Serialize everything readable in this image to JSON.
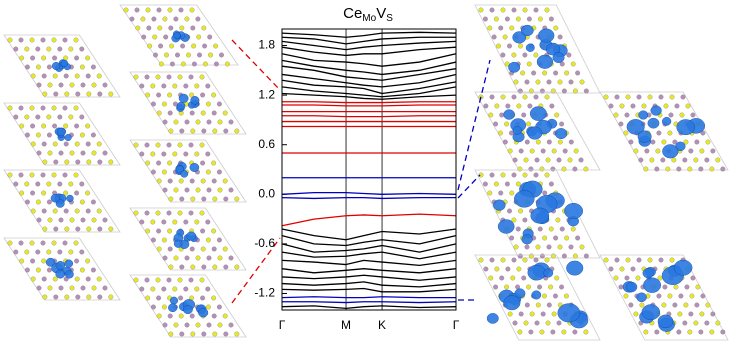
{
  "chart_data": {
    "type": "line",
    "title": {
      "main": "Ce",
      "sub1": "Mo",
      "mid": "V",
      "sub2": "S"
    },
    "x": [
      0,
      0.184,
      0.368,
      0.47,
      0.575,
      0.79,
      1
    ],
    "xlim": [
      0,
      1
    ],
    "xticks": [
      {
        "value": 0,
        "label": "Γ"
      },
      {
        "value": 0.368,
        "label": "M"
      },
      {
        "value": 0.575,
        "label": "K"
      },
      {
        "value": 1,
        "label": "Γ"
      }
    ],
    "ylim": [
      -1.4,
      2.0
    ],
    "yticks": [
      1.8,
      1.2,
      0.6,
      {
        "value": 0,
        "label": "0.0"
      },
      -0.6,
      -1.2
    ],
    "series": [
      {
        "color": "#000000",
        "values": [
          1.95,
          1.93,
          1.9,
          1.92,
          1.95,
          1.96,
          1.95
        ]
      },
      {
        "color": "#000000",
        "values": [
          1.9,
          1.88,
          1.82,
          1.85,
          1.88,
          1.9,
          1.9
        ]
      },
      {
        "color": "#000000",
        "values": [
          1.85,
          1.8,
          1.75,
          1.78,
          1.8,
          1.83,
          1.85
        ]
      },
      {
        "color": "#000000",
        "values": [
          1.78,
          1.72,
          1.68,
          1.7,
          1.7,
          1.75,
          1.78
        ]
      },
      {
        "color": "#000000",
        "values": [
          1.7,
          1.62,
          1.6,
          1.58,
          1.55,
          1.6,
          1.7
        ]
      },
      {
        "color": "#000000",
        "values": [
          1.62,
          1.55,
          1.5,
          1.48,
          1.45,
          1.5,
          1.6
        ]
      },
      {
        "color": "#000000",
        "values": [
          1.55,
          1.5,
          1.42,
          1.4,
          1.38,
          1.45,
          1.52
        ]
      },
      {
        "color": "#000000",
        "values": [
          1.45,
          1.4,
          1.35,
          1.32,
          1.3,
          1.35,
          1.45
        ]
      },
      {
        "color": "#000000",
        "values": [
          1.38,
          1.32,
          1.3,
          1.28,
          1.22,
          1.28,
          1.36
        ]
      },
      {
        "color": "#000000",
        "values": [
          1.3,
          1.25,
          1.22,
          1.2,
          1.18,
          1.22,
          1.3
        ]
      },
      {
        "color": "#000000",
        "values": [
          1.22,
          1.2,
          1.18,
          1.16,
          1.15,
          1.18,
          1.2
        ]
      },
      {
        "color": "#e00000",
        "values": [
          1.12,
          1.12,
          1.11,
          1.11,
          1.11,
          1.12,
          1.12
        ]
      },
      {
        "color": "#e00000",
        "values": [
          1.08,
          1.08,
          1.07,
          1.07,
          1.07,
          1.08,
          1.08
        ]
      },
      {
        "color": "#e00000",
        "values": [
          1.0,
          1.0,
          1.0,
          1.0,
          1.0,
          1.0,
          1.0
        ]
      },
      {
        "color": "#e00000",
        "values": [
          0.95,
          0.95,
          0.94,
          0.94,
          0.94,
          0.95,
          0.95
        ]
      },
      {
        "color": "#e00000",
        "values": [
          0.88,
          0.88,
          0.88,
          0.88,
          0.88,
          0.88,
          0.88
        ]
      },
      {
        "color": "#e00000",
        "values": [
          0.82,
          0.82,
          0.82,
          0.82,
          0.82,
          0.82,
          0.82
        ]
      },
      {
        "color": "#e00000",
        "values": [
          0.5,
          0.5,
          0.5,
          0.5,
          0.5,
          0.5,
          0.5
        ]
      },
      {
        "color": "#0000c0",
        "values": [
          0.2,
          0.2,
          0.2,
          0.2,
          0.2,
          0.2,
          0.2
        ]
      },
      {
        "color": "#0000c0",
        "values": [
          0.0,
          0.02,
          0.02,
          0.01,
          0.0,
          0.01,
          0.0
        ]
      },
      {
        "color": "#0000c0",
        "values": [
          -0.04,
          -0.05,
          -0.04,
          -0.04,
          -0.05,
          -0.04,
          -0.04
        ]
      },
      {
        "color": "#e00000",
        "values": [
          -0.38,
          -0.3,
          -0.26,
          -0.25,
          -0.26,
          -0.24,
          -0.26
        ]
      },
      {
        "color": "#000000",
        "values": [
          -0.42,
          -0.5,
          -0.55,
          -0.5,
          -0.45,
          -0.48,
          -0.42
        ]
      },
      {
        "color": "#000000",
        "values": [
          -0.5,
          -0.6,
          -0.62,
          -0.58,
          -0.55,
          -0.6,
          -0.5
        ]
      },
      {
        "color": "#000000",
        "values": [
          -0.6,
          -0.7,
          -0.68,
          -0.66,
          -0.62,
          -0.7,
          -0.6
        ]
      },
      {
        "color": "#000000",
        "values": [
          -0.7,
          -0.76,
          -0.75,
          -0.72,
          -0.7,
          -0.78,
          -0.7
        ]
      },
      {
        "color": "#000000",
        "values": [
          -0.8,
          -0.82,
          -0.85,
          -0.8,
          -0.82,
          -0.86,
          -0.8
        ]
      },
      {
        "color": "#000000",
        "values": [
          -0.9,
          -0.95,
          -0.92,
          -0.9,
          -0.92,
          -0.95,
          -0.9
        ]
      },
      {
        "color": "#000000",
        "values": [
          -1.0,
          -1.02,
          -1.0,
          -0.98,
          -1.0,
          -1.04,
          -1.0
        ]
      },
      {
        "color": "#000000",
        "values": [
          -1.08,
          -1.1,
          -1.08,
          -1.06,
          -1.1,
          -1.12,
          -1.08
        ]
      },
      {
        "color": "#000000",
        "values": [
          -1.15,
          -1.16,
          -1.15,
          -1.14,
          -1.18,
          -1.18,
          -1.15
        ]
      },
      {
        "color": "#0000c0",
        "values": [
          -1.25,
          -1.24,
          -1.25,
          -1.25,
          -1.24,
          -1.25,
          -1.25
        ]
      },
      {
        "color": "#0000c0",
        "values": [
          -1.3,
          -1.3,
          -1.31,
          -1.3,
          -1.3,
          -1.31,
          -1.3
        ]
      },
      {
        "color": "#000000",
        "values": [
          -1.36,
          -1.35,
          -1.38,
          -1.36,
          -1.35,
          -1.37,
          -1.36
        ]
      }
    ]
  }
}
